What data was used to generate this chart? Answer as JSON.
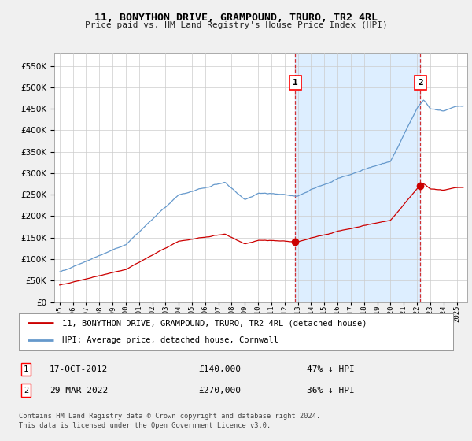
{
  "title": "11, BONYTHON DRIVE, GRAMPOUND, TRURO, TR2 4RL",
  "subtitle": "Price paid vs. HM Land Registry's House Price Index (HPI)",
  "legend_line1": "11, BONYTHON DRIVE, GRAMPOUND, TRURO, TR2 4RL (detached house)",
  "legend_line2": "HPI: Average price, detached house, Cornwall",
  "transaction1_date": "17-OCT-2012",
  "transaction1_price": "£140,000",
  "transaction1_hpi": "47% ↓ HPI",
  "transaction1_year": 2012.8,
  "transaction1_value": 140000,
  "transaction2_date": "29-MAR-2022",
  "transaction2_price": "£270,000",
  "transaction2_hpi": "36% ↓ HPI",
  "transaction2_year": 2022.25,
  "transaction2_value": 270000,
  "hpi_color": "#6699cc",
  "price_color": "#cc0000",
  "vline_color": "#cc0000",
  "shade_color": "#ddeeff",
  "background_color": "#f0f0f0",
  "plot_bg_color": "#ffffff",
  "ylim_min": 0,
  "ylim_max": 580000,
  "yticks": [
    0,
    50000,
    100000,
    150000,
    200000,
    250000,
    300000,
    350000,
    400000,
    450000,
    500000,
    550000
  ],
  "footer_line1": "Contains HM Land Registry data © Crown copyright and database right 2024.",
  "footer_line2": "This data is licensed under the Open Government Licence v3.0."
}
